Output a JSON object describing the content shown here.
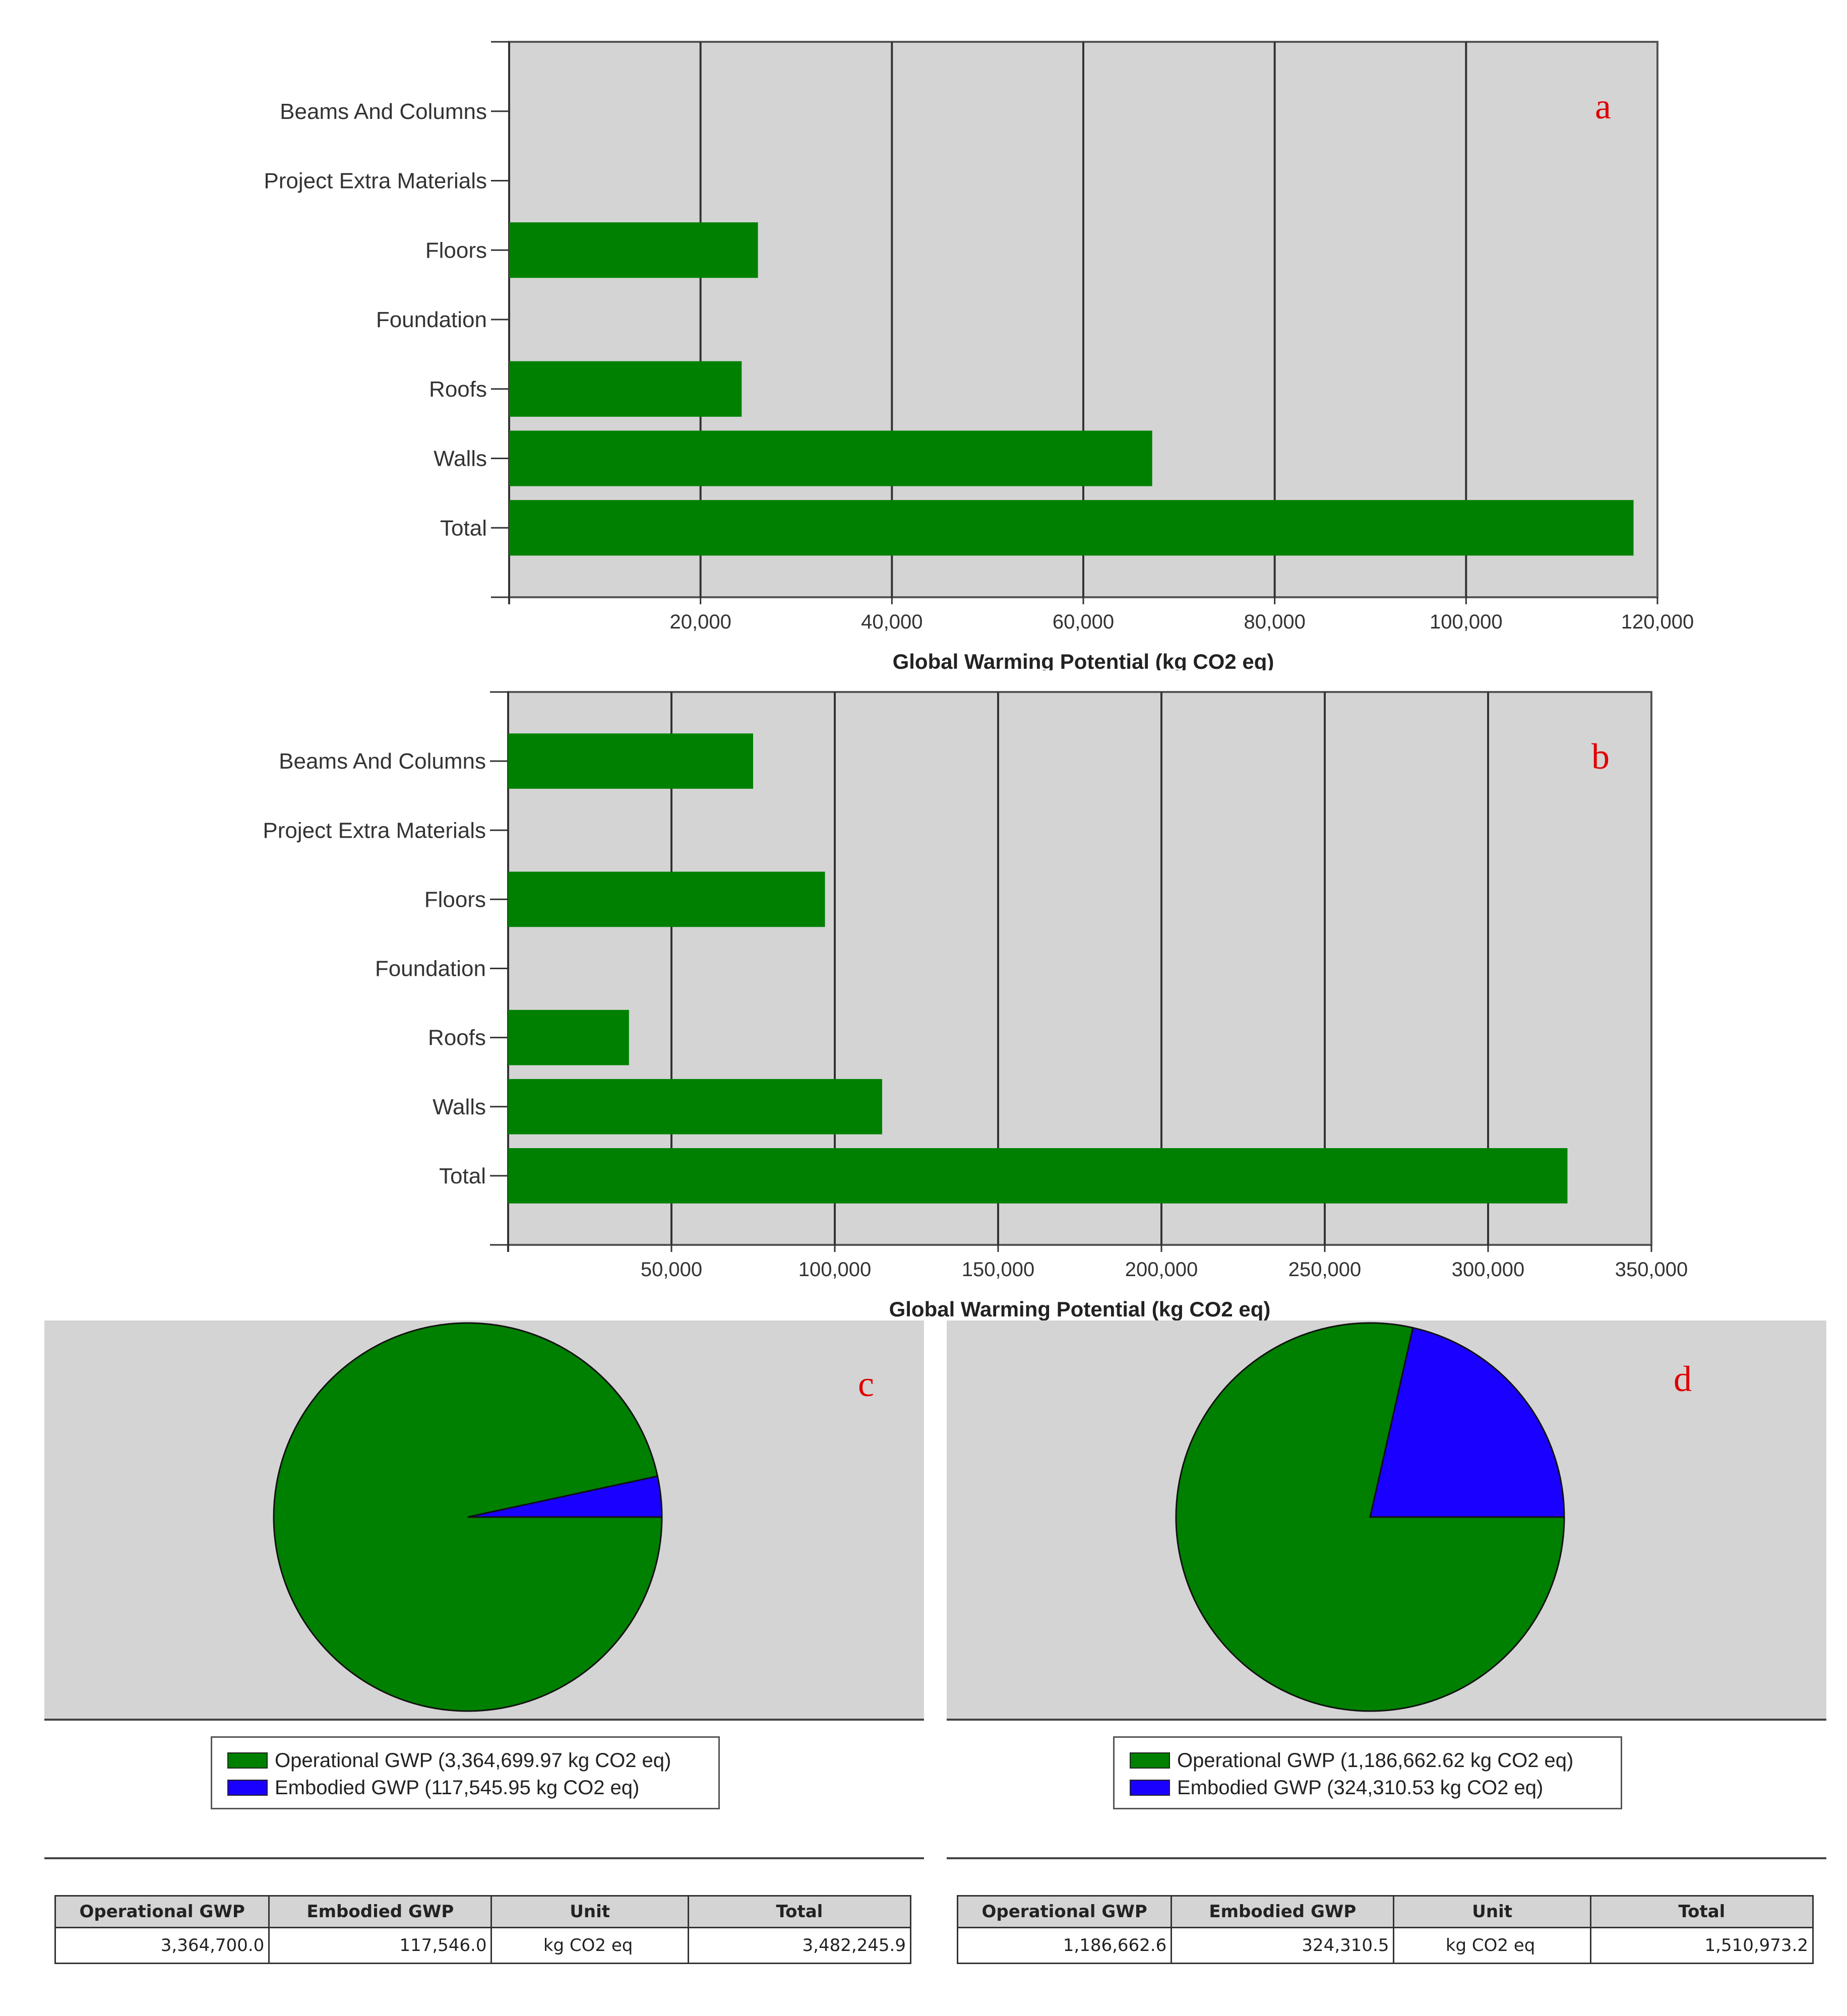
{
  "chart_data": [
    {
      "panel": "a",
      "type": "bar",
      "orientation": "horizontal",
      "categories": [
        "Beams And Columns",
        "Project Extra Materials",
        "Floors",
        "Foundation",
        "Roofs",
        "Walls",
        "Total"
      ],
      "values": [
        0,
        0,
        26000,
        0,
        24300,
        67200,
        117500
      ],
      "xlim": [
        0,
        120000
      ],
      "xticks": [
        20000,
        40000,
        60000,
        80000,
        100000,
        120000
      ],
      "xtick_labels": [
        "20,000",
        "40,000",
        "60,000",
        "80,000",
        "100,000",
        "120,000"
      ],
      "xlabel": "Global Warming Potential (kg CO2 eq)",
      "bar_color": "#008000",
      "grid": true
    },
    {
      "panel": "b",
      "type": "bar",
      "orientation": "horizontal",
      "categories": [
        "Beams And Columns",
        "Project Extra Materials",
        "Floors",
        "Foundation",
        "Roofs",
        "Walls",
        "Total"
      ],
      "values": [
        75000,
        0,
        97000,
        0,
        37000,
        114500,
        324300
      ],
      "xlim": [
        0,
        350000
      ],
      "xticks": [
        50000,
        100000,
        150000,
        200000,
        250000,
        300000,
        350000
      ],
      "xtick_labels": [
        "50,000",
        "100,000",
        "150,000",
        "200,000",
        "250,000",
        "300,000",
        "350,000"
      ],
      "xlabel": "Global Warming Potential (kg CO2 eq)",
      "bar_color": "#008000",
      "grid": true
    },
    {
      "panel": "c",
      "type": "pie",
      "slices": [
        {
          "name": "Operational GWP",
          "value": 3364699.97,
          "color": "#008000"
        },
        {
          "name": "Embodied GWP",
          "value": 117545.95,
          "color": "#1a00ff"
        }
      ],
      "legend": [
        "Operational GWP (3,364,699.97 kg CO2 eq)",
        "Embodied GWP (117,545.95 kg CO2 eq)"
      ],
      "table": {
        "headers": [
          "Operational GWP",
          "Embodied GWP",
          "Unit",
          "Total"
        ],
        "row": [
          "3,364,700.0",
          "117,546.0",
          "kg CO2 eq",
          "3,482,245.9"
        ]
      }
    },
    {
      "panel": "d",
      "type": "pie",
      "slices": [
        {
          "name": "Operational GWP",
          "value": 1186662.62,
          "color": "#008000"
        },
        {
          "name": "Embodied GWP",
          "value": 324310.53,
          "color": "#1a00ff"
        }
      ],
      "legend": [
        "Operational GWP (1,186,662.62 kg CO2 eq)",
        "Embodied GWP (324,310.53 kg CO2 eq)"
      ],
      "table": {
        "headers": [
          "Operational GWP",
          "Embodied GWP",
          "Unit",
          "Total"
        ],
        "row": [
          "1,186,662.6",
          "324,310.5",
          "kg CO2 eq",
          "1,510,973.2"
        ]
      }
    }
  ],
  "colors": {
    "plot_bg": "#d4d4d4",
    "grid": "#333333",
    "operational": "#008000",
    "embodied": "#1a00ff",
    "panel_letter": "#e00000"
  }
}
